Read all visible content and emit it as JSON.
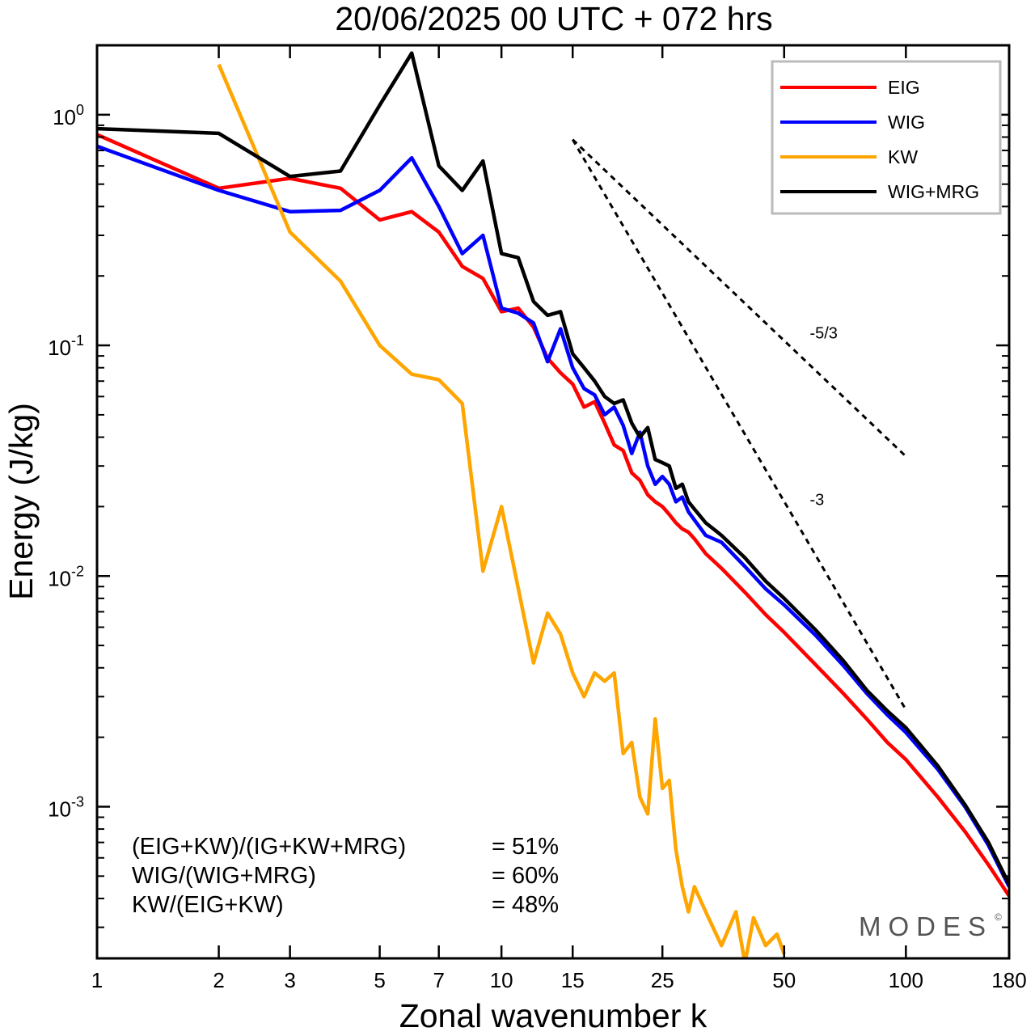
{
  "title": "20/06/2025  00 UTC  + 072 hrs",
  "brand": "MODES",
  "brand_mark": "©",
  "chart_data": {
    "type": "line",
    "xlabel": "Zonal wavenumber k",
    "ylabel": "Energy (J/kg)",
    "xscale": "log",
    "yscale": "log",
    "xlim": [
      1,
      180
    ],
    "ylim": [
      0.00022,
      2.0
    ],
    "xticks": [
      1,
      2,
      3,
      5,
      7,
      10,
      15,
      25,
      50,
      100,
      180
    ],
    "xtick_labels": [
      "1",
      "2",
      "3",
      "5",
      "7",
      "10",
      "15",
      "25",
      "50",
      "100",
      "180"
    ],
    "yticks": [
      {
        "value": 1,
        "base": "10",
        "exp": "0"
      },
      {
        "value": 0.1,
        "base": "10",
        "exp": "-1"
      },
      {
        "value": 0.01,
        "base": "10",
        "exp": "-2"
      },
      {
        "value": 0.001,
        "base": "10",
        "exp": "-3"
      }
    ],
    "grid": false,
    "legend_position": "top-right",
    "series": [
      {
        "name": "EIG",
        "color": "#ff0000",
        "x": [
          1,
          2,
          3,
          4,
          5,
          6,
          7,
          8,
          9,
          10,
          11,
          12,
          13,
          14,
          15,
          16,
          17,
          18,
          19,
          20,
          21,
          22,
          23,
          24,
          25,
          26,
          27,
          28,
          29,
          30,
          32,
          35,
          40,
          45,
          50,
          60,
          70,
          80,
          90,
          100,
          120,
          140,
          160,
          180
        ],
        "y": [
          0.82,
          0.48,
          0.53,
          0.48,
          0.35,
          0.38,
          0.31,
          0.22,
          0.195,
          0.14,
          0.145,
          0.12,
          0.088,
          0.076,
          0.068,
          0.054,
          0.057,
          0.046,
          0.037,
          0.035,
          0.028,
          0.026,
          0.0225,
          0.021,
          0.02,
          0.0185,
          0.017,
          0.016,
          0.0155,
          0.0145,
          0.0125,
          0.0108,
          0.0085,
          0.0068,
          0.0057,
          0.0041,
          0.0031,
          0.0024,
          0.0019,
          0.0016,
          0.0011,
          0.00078,
          0.00056,
          0.00041
        ]
      },
      {
        "name": "WIG",
        "color": "#0000ff",
        "x": [
          1,
          2,
          3,
          4,
          5,
          6,
          7,
          8,
          9,
          10,
          11,
          12,
          13,
          14,
          15,
          16,
          17,
          18,
          19,
          20,
          21,
          22,
          23,
          24,
          25,
          26,
          27,
          28,
          29,
          30,
          32,
          35,
          40,
          45,
          50,
          60,
          70,
          80,
          90,
          100,
          120,
          140,
          160,
          180
        ],
        "y": [
          0.73,
          0.47,
          0.38,
          0.385,
          0.47,
          0.65,
          0.4,
          0.25,
          0.3,
          0.145,
          0.138,
          0.125,
          0.085,
          0.118,
          0.08,
          0.065,
          0.061,
          0.05,
          0.054,
          0.045,
          0.034,
          0.042,
          0.03,
          0.025,
          0.027,
          0.025,
          0.021,
          0.022,
          0.019,
          0.0175,
          0.015,
          0.014,
          0.011,
          0.0088,
          0.0075,
          0.0055,
          0.0041,
          0.0031,
          0.0025,
          0.0021,
          0.00145,
          0.001,
          0.00068,
          0.00045
        ]
      },
      {
        "name": "KW",
        "color": "#ffa500",
        "x": [
          2,
          3,
          4,
          5,
          6,
          7,
          8,
          9,
          10,
          12,
          13,
          14,
          15,
          16,
          17,
          18,
          19,
          20,
          21,
          22,
          23,
          24,
          25,
          26,
          27,
          28,
          29,
          30,
          32,
          35,
          38,
          40,
          42,
          45,
          48,
          50
        ],
        "y": [
          1.65,
          0.31,
          0.19,
          0.1,
          0.075,
          0.071,
          0.056,
          0.0105,
          0.02,
          0.0042,
          0.0069,
          0.0056,
          0.0038,
          0.003,
          0.0038,
          0.0035,
          0.0038,
          0.0017,
          0.0019,
          0.0011,
          0.00093,
          0.0024,
          0.0012,
          0.0013,
          0.00065,
          0.00045,
          0.00035,
          0.00045,
          0.00035,
          0.00025,
          0.00035,
          0.00021,
          0.00033,
          0.00025,
          0.00028,
          0.00023
        ]
      },
      {
        "name": "WIG+MRG",
        "color": "#000000",
        "x": [
          1,
          2,
          3,
          4,
          5,
          6,
          7,
          8,
          9,
          10,
          11,
          12,
          13,
          14,
          15,
          16,
          17,
          18,
          19,
          20,
          21,
          22,
          23,
          24,
          25,
          26,
          27,
          28,
          29,
          30,
          32,
          35,
          40,
          45,
          50,
          60,
          70,
          80,
          90,
          100,
          120,
          140,
          160,
          180
        ],
        "y": [
          0.87,
          0.83,
          0.54,
          0.57,
          1.1,
          1.85,
          0.6,
          0.47,
          0.63,
          0.25,
          0.24,
          0.155,
          0.135,
          0.14,
          0.092,
          0.08,
          0.07,
          0.06,
          0.056,
          0.058,
          0.046,
          0.04,
          0.044,
          0.032,
          0.031,
          0.03,
          0.024,
          0.025,
          0.021,
          0.0195,
          0.017,
          0.015,
          0.012,
          0.0095,
          0.008,
          0.0058,
          0.0043,
          0.0032,
          0.0026,
          0.0022,
          0.0015,
          0.00102,
          0.0007,
          0.00046
        ]
      }
    ],
    "reference_lines": [
      {
        "label": "-5/3",
        "slope": -1.6667,
        "x": [
          15,
          100
        ],
        "y0": 0.78
      },
      {
        "label": "-3",
        "slope": -3,
        "x": [
          15,
          100
        ],
        "y0": 0.78
      }
    ],
    "annotations": [
      {
        "label": "(EIG+KW)/(IG+KW+MRG)",
        "value": "= 51%"
      },
      {
        "label": "WIG/(WIG+MRG)",
        "value": "= 60%"
      },
      {
        "label": "KW/(EIG+KW)",
        "value": "= 48%"
      }
    ]
  }
}
